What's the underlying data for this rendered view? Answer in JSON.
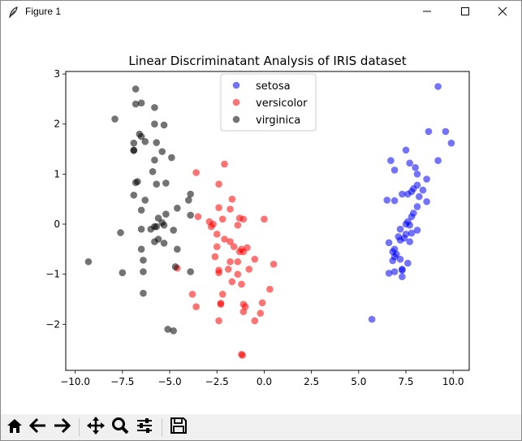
{
  "window": {
    "title": "Figure 1",
    "icons": [
      "feather-icon",
      "minimize-icon",
      "maximize-icon",
      "close-icon"
    ]
  },
  "toolbar": {
    "buttons": [
      {
        "name": "home-icon"
      },
      {
        "name": "back-arrow-icon"
      },
      {
        "name": "forward-arrow-icon"
      },
      {
        "name": "pan-icon"
      },
      {
        "name": "zoom-icon"
      },
      {
        "name": "configure-subplots-icon"
      },
      {
        "name": "save-icon"
      }
    ]
  },
  "chart_data": {
    "type": "scatter",
    "title": "Linear Discriminatant Analysis of IRIS dataset",
    "xlabel": "",
    "ylabel": "",
    "xlim": [
      -10.5,
      10.85
    ],
    "ylim": [
      -2.92,
      3.05
    ],
    "xticks": [
      -10.0,
      -7.5,
      -5.0,
      -2.5,
      0.0,
      2.5,
      5.0,
      7.5,
      10.0
    ],
    "xtick_labels": [
      "−10.0",
      "−7.5",
      "−5.0",
      "−2.5",
      "0.0",
      "2.5",
      "5.0",
      "7.5",
      "10.0"
    ],
    "yticks": [
      3,
      2,
      1,
      0,
      -1,
      -2
    ],
    "ytick_labels": [
      "3",
      "2",
      "1",
      "0",
      "−1",
      "−2"
    ],
    "grid": false,
    "legend_position": "top-center",
    "series": [
      {
        "name": "setosa",
        "color": "#0000ff",
        "points": [
          [
            9.2,
            2.75
          ],
          [
            9.6,
            1.85
          ],
          [
            8.7,
            1.85
          ],
          [
            9.9,
            1.62
          ],
          [
            7.5,
            1.48
          ],
          [
            6.7,
            1.27
          ],
          [
            9.2,
            1.27
          ],
          [
            7.7,
            1.22
          ],
          [
            8.0,
            1.13
          ],
          [
            6.9,
            1.08
          ],
          [
            8.1,
            1.0
          ],
          [
            8.6,
            0.9
          ],
          [
            8.1,
            0.78
          ],
          [
            7.9,
            0.71
          ],
          [
            8.4,
            0.68
          ],
          [
            7.8,
            0.65
          ],
          [
            7.6,
            0.6
          ],
          [
            7.3,
            0.6
          ],
          [
            8.2,
            0.55
          ],
          [
            6.5,
            0.48
          ],
          [
            6.9,
            0.47
          ],
          [
            8.6,
            0.45
          ],
          [
            8.1,
            0.35
          ],
          [
            7.9,
            0.22
          ],
          [
            7.8,
            0.15
          ],
          [
            7.6,
            0.05
          ],
          [
            7.5,
            0.0
          ],
          [
            7.7,
            -0.02
          ],
          [
            7.2,
            -0.1
          ],
          [
            7.5,
            -0.2
          ],
          [
            8.1,
            -0.12
          ],
          [
            7.8,
            -0.18
          ],
          [
            7.1,
            -0.25
          ],
          [
            7.4,
            -0.28
          ],
          [
            7.2,
            -0.32
          ],
          [
            7.7,
            -0.35
          ],
          [
            6.6,
            -0.37
          ],
          [
            6.9,
            -0.5
          ],
          [
            6.8,
            -0.55
          ],
          [
            7.0,
            -0.6
          ],
          [
            6.9,
            -0.65
          ],
          [
            7.2,
            -0.7
          ],
          [
            6.8,
            -0.73
          ],
          [
            7.6,
            -0.78
          ],
          [
            7.3,
            -0.9
          ],
          [
            6.9,
            -0.95
          ],
          [
            6.6,
            -0.98
          ],
          [
            7.3,
            -1.05
          ],
          [
            5.7,
            -1.9
          ],
          [
            7.3,
            -0.92
          ]
        ]
      },
      {
        "name": "versicolor",
        "color": "#ff0000",
        "points": [
          [
            -3.6,
            1.03
          ],
          [
            -2.4,
            0.8
          ],
          [
            -2.1,
            1.2
          ],
          [
            -1.7,
            0.5
          ],
          [
            -2.4,
            0.33
          ],
          [
            -1.8,
            0.3
          ],
          [
            -3.5,
            0.15
          ],
          [
            -2.2,
            0.1
          ],
          [
            -1.3,
            0.12
          ],
          [
            -1.1,
            0.1
          ],
          [
            0.0,
            0.1
          ],
          [
            -2.9,
            0.05
          ],
          [
            -2.7,
            0.0
          ],
          [
            -1.4,
            -0.02
          ],
          [
            -2.8,
            -0.05
          ],
          [
            -2.5,
            -0.2
          ],
          [
            -2.1,
            -0.3
          ],
          [
            -1.8,
            -0.35
          ],
          [
            -2.5,
            -0.45
          ],
          [
            -1.6,
            -0.45
          ],
          [
            -1.2,
            -0.5
          ],
          [
            -0.9,
            -0.47
          ],
          [
            -1.3,
            -0.55
          ],
          [
            -1.1,
            -0.55
          ],
          [
            -2.6,
            -0.65
          ],
          [
            -1.8,
            -0.75
          ],
          [
            -2.4,
            -0.92
          ],
          [
            -1.4,
            -0.75
          ],
          [
            -0.5,
            -0.7
          ],
          [
            0.5,
            -0.8
          ],
          [
            -2.4,
            -0.97
          ],
          [
            -1.9,
            -0.9
          ],
          [
            -4.6,
            -0.88
          ],
          [
            -1.4,
            -1.0
          ],
          [
            -0.8,
            -0.9
          ],
          [
            -1.7,
            -1.15
          ],
          [
            -1.2,
            -1.2
          ],
          [
            0.3,
            -1.3
          ],
          [
            -3.8,
            -1.4
          ],
          [
            -2.2,
            -1.4
          ],
          [
            -2.3,
            -1.58
          ],
          [
            -2.3,
            -1.6
          ],
          [
            -1.1,
            -1.6
          ],
          [
            -0.1,
            -1.57
          ],
          [
            -3.6,
            -1.65
          ],
          [
            -1.0,
            -1.65
          ],
          [
            -1.1,
            -1.75
          ],
          [
            -0.2,
            -1.78
          ],
          [
            -2.4,
            -1.93
          ],
          [
            -0.5,
            -1.93
          ],
          [
            -1.2,
            -2.6
          ],
          [
            -1.15,
            -2.62
          ]
        ]
      },
      {
        "name": "virginica",
        "color": "#000000",
        "points": [
          [
            -6.8,
            2.7
          ],
          [
            -6.8,
            2.4
          ],
          [
            -6.5,
            2.42
          ],
          [
            -5.8,
            2.33
          ],
          [
            -7.9,
            2.1
          ],
          [
            -5.8,
            2.0
          ],
          [
            -5.3,
            1.98
          ],
          [
            -6.6,
            1.8
          ],
          [
            -6.5,
            1.75
          ],
          [
            -6.3,
            1.65
          ],
          [
            -5.7,
            1.63
          ],
          [
            -6.9,
            1.62
          ],
          [
            -6.9,
            1.47
          ],
          [
            -5.4,
            1.45
          ],
          [
            -6.9,
            1.48
          ],
          [
            -4.9,
            1.33
          ],
          [
            -5.8,
            1.28
          ],
          [
            -5.9,
            1.05
          ],
          [
            -5.7,
            0.8
          ],
          [
            -5.2,
            0.82
          ],
          [
            -6.8,
            0.83
          ],
          [
            -6.7,
            0.85
          ],
          [
            -6.9,
            0.58
          ],
          [
            -3.9,
            0.6
          ],
          [
            -6.3,
            0.48
          ],
          [
            -4.0,
            0.48
          ],
          [
            -4.6,
            0.32
          ],
          [
            -6.5,
            0.28
          ],
          [
            -5.2,
            0.2
          ],
          [
            -3.9,
            0.18
          ],
          [
            -5.6,
            0.12
          ],
          [
            -5.4,
            0.03
          ],
          [
            -5.7,
            -0.05
          ],
          [
            -5.3,
            -0.02
          ],
          [
            -5.8,
            -0.05
          ],
          [
            -6.0,
            -0.1
          ],
          [
            -6.5,
            -0.1
          ],
          [
            -4.8,
            -0.12
          ],
          [
            -7.6,
            -0.17
          ],
          [
            -5.6,
            -0.3
          ],
          [
            -5.8,
            -0.35
          ],
          [
            -5.3,
            -0.38
          ],
          [
            -6.5,
            -0.5
          ],
          [
            -4.6,
            -0.5
          ],
          [
            -9.3,
            -0.75
          ],
          [
            -6.4,
            -0.72
          ],
          [
            -4.7,
            -0.85
          ],
          [
            -7.5,
            -0.97
          ],
          [
            -6.4,
            -0.95
          ],
          [
            -6.4,
            -1.38
          ],
          [
            -3.9,
            -0.95
          ],
          [
            -5.1,
            -2.1
          ],
          [
            -4.8,
            -2.13
          ]
        ]
      }
    ]
  }
}
